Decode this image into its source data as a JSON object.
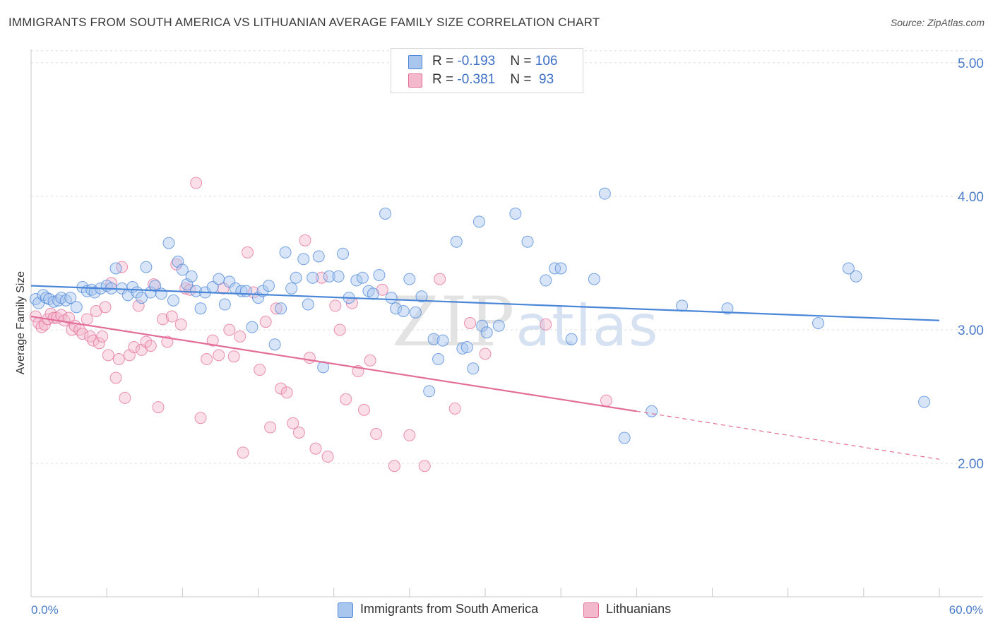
{
  "header": {
    "title": "IMMIGRANTS FROM SOUTH AMERICA VS LITHUANIAN AVERAGE FAMILY SIZE CORRELATION CHART",
    "source": "Source: ZipAtlas.com"
  },
  "watermark": {
    "zip": "ZIP",
    "atlas": "atlas"
  },
  "legend": {
    "rows": [
      {
        "r_label": "R = ",
        "r_value": "-0.193",
        "n_label": "N = ",
        "n_value": "106",
        "color": "#a9c6ef"
      },
      {
        "r_label": "R = ",
        "r_value": "-0.381",
        "n_label": "N = ",
        "n_value": " 93",
        "color": "#f4b8cc"
      }
    ]
  },
  "bottom_legend": [
    {
      "label": "Immigrants from South America",
      "color": "#a9c6ef"
    },
    {
      "label": "Lithuanians",
      "color": "#f4b8cc"
    }
  ],
  "chart_data": {
    "type": "scatter",
    "title": "IMMIGRANTS FROM SOUTH AMERICA VS LITHUANIAN AVERAGE FAMILY SIZE CORRELATION CHART",
    "ylabel": "Average Family Size",
    "xlabel": "",
    "xlim": [
      0,
      60
    ],
    "ylim": [
      1.0,
      5.1
    ],
    "x_tick_labels": [
      "0.0%",
      "60.0%"
    ],
    "y_ticks": [
      2.0,
      3.0,
      4.0,
      5.0
    ],
    "y_tick_labels": [
      "2.00",
      "3.00",
      "4.00",
      "5.00"
    ],
    "grid": true,
    "series": [
      {
        "name": "Immigrants from South America",
        "color": "#4a86d8",
        "fill": "#a9c6ef",
        "trend": {
          "x0": 0,
          "y0": 3.33,
          "x1": 60,
          "y1": 3.07
        },
        "points": [
          [
            0.3,
            3.23
          ],
          [
            0.5,
            3.2
          ],
          [
            0.8,
            3.26
          ],
          [
            1.0,
            3.24
          ],
          [
            1.2,
            3.23
          ],
          [
            1.5,
            3.21
          ],
          [
            1.8,
            3.22
          ],
          [
            2.0,
            3.24
          ],
          [
            2.3,
            3.22
          ],
          [
            2.6,
            3.24
          ],
          [
            3.0,
            3.17
          ],
          [
            3.4,
            3.32
          ],
          [
            3.7,
            3.29
          ],
          [
            4.0,
            3.3
          ],
          [
            4.2,
            3.28
          ],
          [
            4.6,
            3.31
          ],
          [
            5.0,
            3.33
          ],
          [
            5.3,
            3.31
          ],
          [
            5.6,
            3.46
          ],
          [
            6.0,
            3.31
          ],
          [
            6.4,
            3.26
          ],
          [
            6.7,
            3.32
          ],
          [
            7.0,
            3.28
          ],
          [
            7.3,
            3.24
          ],
          [
            7.6,
            3.47
          ],
          [
            7.9,
            3.28
          ],
          [
            8.2,
            3.33
          ],
          [
            8.6,
            3.27
          ],
          [
            9.1,
            3.65
          ],
          [
            9.4,
            3.22
          ],
          [
            9.7,
            3.51
          ],
          [
            10.0,
            3.45
          ],
          [
            10.3,
            3.34
          ],
          [
            10.6,
            3.4
          ],
          [
            10.9,
            3.29
          ],
          [
            11.2,
            3.16
          ],
          [
            11.5,
            3.28
          ],
          [
            12.0,
            3.32
          ],
          [
            12.4,
            3.38
          ],
          [
            12.8,
            3.19
          ],
          [
            13.1,
            3.36
          ],
          [
            13.5,
            3.31
          ],
          [
            13.9,
            3.29
          ],
          [
            14.2,
            3.29
          ],
          [
            14.6,
            3.02
          ],
          [
            15.0,
            3.24
          ],
          [
            15.3,
            3.29
          ],
          [
            15.7,
            3.33
          ],
          [
            16.1,
            2.89
          ],
          [
            16.5,
            3.16
          ],
          [
            16.8,
            3.58
          ],
          [
            17.2,
            3.31
          ],
          [
            17.5,
            3.39
          ],
          [
            18.0,
            3.53
          ],
          [
            18.3,
            3.19
          ],
          [
            18.6,
            3.39
          ],
          [
            19.0,
            3.55
          ],
          [
            19.3,
            2.72
          ],
          [
            19.7,
            3.4
          ],
          [
            20.3,
            3.4
          ],
          [
            20.6,
            3.57
          ],
          [
            21.0,
            3.24
          ],
          [
            21.5,
            3.37
          ],
          [
            21.9,
            3.39
          ],
          [
            22.3,
            3.29
          ],
          [
            22.6,
            3.27
          ],
          [
            23.0,
            3.41
          ],
          [
            23.4,
            3.87
          ],
          [
            23.8,
            3.24
          ],
          [
            24.1,
            3.16
          ],
          [
            24.6,
            3.14
          ],
          [
            25.0,
            3.38
          ],
          [
            25.4,
            3.13
          ],
          [
            25.8,
            3.25
          ],
          [
            26.3,
            2.54
          ],
          [
            26.6,
            2.93
          ],
          [
            26.9,
            2.78
          ],
          [
            27.2,
            2.92
          ],
          [
            28.1,
            3.66
          ],
          [
            28.5,
            2.86
          ],
          [
            28.8,
            2.87
          ],
          [
            29.2,
            2.71
          ],
          [
            29.6,
            3.81
          ],
          [
            29.8,
            3.03
          ],
          [
            30.1,
            2.98
          ],
          [
            30.9,
            3.03
          ],
          [
            32.0,
            3.87
          ],
          [
            32.8,
            3.66
          ],
          [
            34.0,
            3.37
          ],
          [
            34.6,
            3.46
          ],
          [
            35.0,
            3.46
          ],
          [
            35.7,
            2.93
          ],
          [
            37.2,
            3.38
          ],
          [
            37.9,
            4.02
          ],
          [
            39.2,
            2.19
          ],
          [
            41.0,
            2.39
          ],
          [
            43.0,
            3.18
          ],
          [
            46.0,
            3.16
          ],
          [
            52.0,
            3.05
          ],
          [
            54.0,
            3.46
          ],
          [
            54.5,
            3.4
          ],
          [
            59.0,
            2.46
          ]
        ]
      },
      {
        "name": "Lithuanians",
        "color": "#e36d97",
        "fill": "#f4b8cc",
        "trend": {
          "x0": 0,
          "y0": 3.1,
          "x1": 40,
          "y1": 2.39
        },
        "trend_dashed": {
          "x0": 40,
          "y0": 2.39,
          "x1": 60,
          "y1": 2.03
        },
        "points": [
          [
            0.3,
            3.1
          ],
          [
            0.5,
            3.05
          ],
          [
            0.7,
            3.02
          ],
          [
            0.9,
            3.04
          ],
          [
            1.1,
            3.08
          ],
          [
            1.3,
            3.12
          ],
          [
            1.5,
            3.09
          ],
          [
            1.7,
            3.09
          ],
          [
            2.0,
            3.11
          ],
          [
            2.2,
            3.07
          ],
          [
            2.5,
            3.09
          ],
          [
            2.7,
            3.0
          ],
          [
            2.9,
            3.03
          ],
          [
            3.2,
            3.0
          ],
          [
            3.4,
            2.97
          ],
          [
            3.7,
            3.08
          ],
          [
            3.9,
            2.95
          ],
          [
            4.1,
            2.92
          ],
          [
            4.3,
            3.14
          ],
          [
            4.5,
            2.9
          ],
          [
            4.7,
            2.95
          ],
          [
            4.9,
            3.17
          ],
          [
            5.1,
            2.81
          ],
          [
            5.3,
            3.35
          ],
          [
            5.6,
            2.64
          ],
          [
            5.8,
            2.78
          ],
          [
            6.0,
            3.47
          ],
          [
            6.2,
            2.49
          ],
          [
            6.5,
            2.81
          ],
          [
            6.8,
            2.87
          ],
          [
            7.1,
            3.18
          ],
          [
            7.3,
            2.85
          ],
          [
            7.6,
            2.91
          ],
          [
            7.9,
            2.88
          ],
          [
            8.1,
            3.34
          ],
          [
            8.4,
            2.42
          ],
          [
            8.7,
            3.08
          ],
          [
            9.0,
            2.91
          ],
          [
            9.3,
            3.1
          ],
          [
            9.6,
            3.49
          ],
          [
            9.9,
            3.04
          ],
          [
            10.2,
            3.31
          ],
          [
            10.5,
            3.3
          ],
          [
            10.9,
            4.1
          ],
          [
            11.2,
            2.34
          ],
          [
            11.6,
            2.78
          ],
          [
            12.0,
            2.92
          ],
          [
            12.4,
            2.81
          ],
          [
            12.7,
            3.31
          ],
          [
            13.1,
            3.0
          ],
          [
            13.4,
            2.8
          ],
          [
            13.8,
            2.95
          ],
          [
            14.0,
            2.08
          ],
          [
            14.3,
            3.58
          ],
          [
            14.7,
            3.28
          ],
          [
            15.1,
            2.7
          ],
          [
            15.5,
            3.06
          ],
          [
            15.8,
            2.27
          ],
          [
            16.2,
            3.16
          ],
          [
            16.5,
            2.56
          ],
          [
            16.9,
            2.53
          ],
          [
            17.3,
            2.3
          ],
          [
            17.7,
            2.23
          ],
          [
            18.1,
            3.67
          ],
          [
            18.4,
            2.79
          ],
          [
            18.8,
            2.11
          ],
          [
            19.2,
            3.39
          ],
          [
            19.6,
            2.05
          ],
          [
            20.1,
            3.18
          ],
          [
            20.4,
            3.0
          ],
          [
            20.8,
            2.48
          ],
          [
            21.2,
            3.2
          ],
          [
            21.6,
            2.69
          ],
          [
            22.0,
            2.4
          ],
          [
            22.4,
            2.77
          ],
          [
            22.8,
            2.22
          ],
          [
            23.2,
            3.3
          ],
          [
            24.0,
            1.98
          ],
          [
            25.0,
            2.21
          ],
          [
            26.0,
            1.98
          ],
          [
            27.0,
            3.38
          ],
          [
            28.0,
            2.41
          ],
          [
            29.0,
            3.05
          ],
          [
            30.0,
            2.82
          ],
          [
            34.0,
            3.04
          ],
          [
            38.0,
            2.47
          ]
        ]
      }
    ]
  }
}
